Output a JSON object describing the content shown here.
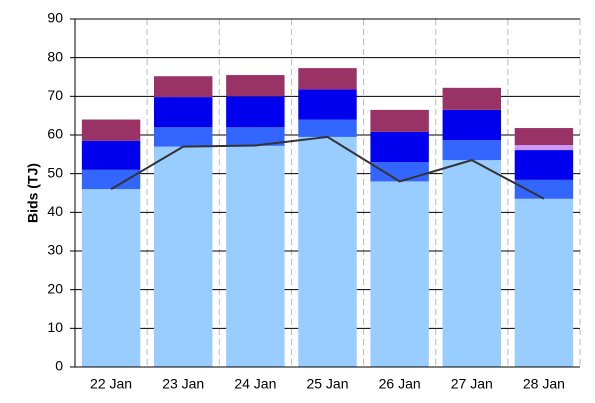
{
  "chart_data": {
    "type": "bar",
    "stacked": true,
    "y_label": "Bids (TJ)",
    "categories": [
      "22 Jan",
      "23 Jan",
      "24 Jan",
      "25 Jan",
      "26 Jan",
      "27 Jan",
      "28 Jan"
    ],
    "series": [
      {
        "color": "#99ccff",
        "values": [
          46,
          57,
          57.2,
          59.5,
          48,
          53.5,
          43.5
        ]
      },
      {
        "color": "#3366ff",
        "values": [
          5,
          5,
          4.8,
          4.5,
          5,
          5.2,
          4.9
        ]
      },
      {
        "color": "#0000ee",
        "values": [
          7.5,
          7.8,
          8,
          7.8,
          7.8,
          7.8,
          7.7
        ]
      },
      {
        "color": "#cc99ff",
        "values": [
          0,
          0,
          0,
          0,
          0,
          0,
          1.3
        ]
      },
      {
        "color": "#993366",
        "values": [
          5.5,
          5.4,
          5.5,
          5.5,
          5.7,
          5.7,
          4.4
        ]
      },
      {
        "type": "line",
        "color": "#333333",
        "values": [
          46,
          57,
          57.3,
          59.5,
          48,
          53.5,
          43.5
        ]
      }
    ],
    "ylim": [
      0,
      90
    ],
    "yticks": [
      0,
      10,
      20,
      30,
      40,
      50,
      60,
      70,
      80,
      90
    ],
    "grid": true
  }
}
